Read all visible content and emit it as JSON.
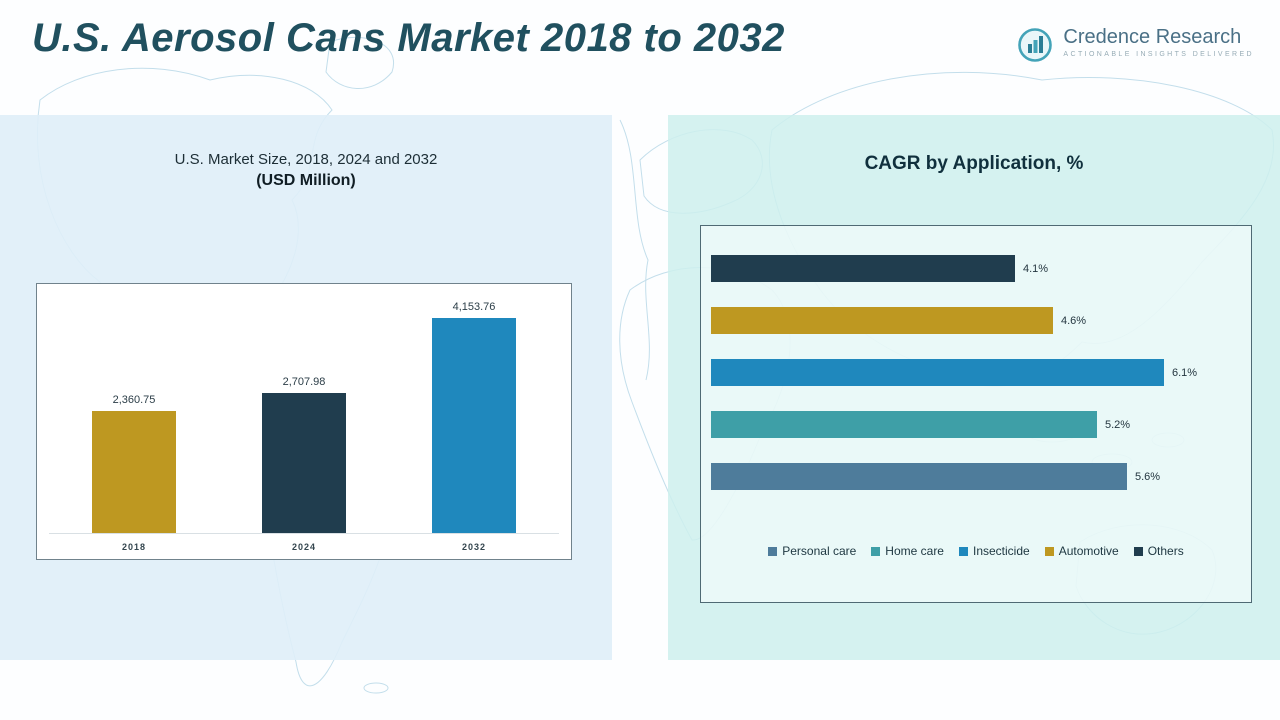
{
  "header": {
    "title": "U.S. Aerosol Cans Market 2018 to 2032",
    "logo": {
      "name": "Credence Research",
      "tagline": "Actionable Insights Delivered"
    }
  },
  "chart_data": [
    {
      "type": "bar",
      "orientation": "vertical",
      "title": "U.S. Market Size, 2018, 2024 and 2032",
      "subtitle": "(USD Million)",
      "categories": [
        "2018",
        "2024",
        "2032"
      ],
      "values": [
        2360.75,
        2707.98,
        4153.76
      ],
      "value_labels": [
        "2,360.75",
        "2,707.98",
        "4,153.76"
      ],
      "colors": [
        "#be9821",
        "#203d4e",
        "#1f88bd"
      ],
      "xlabel": "",
      "ylabel": "",
      "ylim": [
        0,
        4500
      ],
      "grid": false,
      "legend_position": "none"
    },
    {
      "type": "bar",
      "orientation": "horizontal",
      "title": "CAGR by Application, %",
      "categories": [
        "Others",
        "Automotive",
        "Insecticide",
        "Home care",
        "Personal care"
      ],
      "values": [
        4.1,
        4.6,
        6.1,
        5.2,
        5.6
      ],
      "value_labels": [
        "4.1%",
        "4.6%",
        "6.1%",
        "5.2%",
        "5.6%"
      ],
      "colors": [
        "#203d4e",
        "#be9821",
        "#1f88bd",
        "#3e9fa7",
        "#4e7c9b"
      ],
      "xlabel": "",
      "ylabel": "",
      "xlim": [
        0,
        6.6
      ],
      "grid": false,
      "legend_position": "bottom",
      "legend": [
        {
          "label": "Personal care",
          "color": "#4e7c9b"
        },
        {
          "label": "Home care",
          "color": "#3e9fa7"
        },
        {
          "label": "Insecticide",
          "color": "#1f88bd"
        },
        {
          "label": "Automotive",
          "color": "#be9821"
        },
        {
          "label": "Others",
          "color": "#203d4e"
        }
      ]
    }
  ]
}
